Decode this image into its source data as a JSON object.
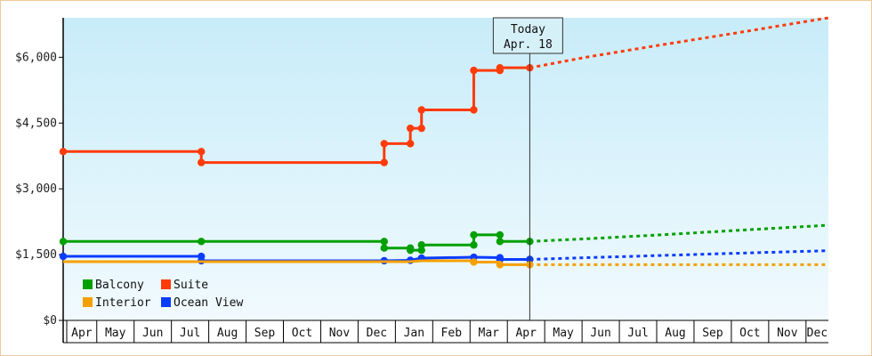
{
  "chart_data": {
    "type": "line",
    "title": "",
    "xlabel": "",
    "ylabel": "",
    "ylim": [
      0,
      6900
    ],
    "y_ticks": [
      "$0",
      "$1,500",
      "$3,000",
      "$4,500",
      "$6,000"
    ],
    "y_tick_values": [
      0,
      1500,
      3000,
      4500,
      6000
    ],
    "x_range": [
      0,
      20.5
    ],
    "months": [
      "Apr",
      "May",
      "Jun",
      "Jul",
      "Aug",
      "Sep",
      "Oct",
      "Nov",
      "Dec",
      "Jan",
      "Feb",
      "Mar",
      "Apr",
      "May",
      "Jun",
      "Jul",
      "Aug",
      "Sep",
      "Oct",
      "Nov",
      "Dec"
    ],
    "today": {
      "label": "Today",
      "date": "Apr. 18",
      "x": 12.5
    },
    "grid": false,
    "legend_placement": "bottom-left",
    "series": [
      {
        "name": "Suite",
        "color": "#ff3b0a",
        "points": [
          [
            0.0,
            3850
          ],
          [
            3.7,
            3850
          ],
          [
            3.7,
            3600
          ],
          [
            8.6,
            3600
          ],
          [
            8.6,
            4030
          ],
          [
            9.3,
            4030
          ],
          [
            9.3,
            4380
          ],
          [
            9.6,
            4380
          ],
          [
            9.6,
            4800
          ],
          [
            11.0,
            4800
          ],
          [
            11.0,
            5700
          ],
          [
            11.7,
            5700
          ],
          [
            11.7,
            5760
          ],
          [
            12.5,
            5760
          ]
        ],
        "markers": [
          [
            0.0,
            3850
          ],
          [
            3.7,
            3850
          ],
          [
            3.7,
            3600
          ],
          [
            8.6,
            3600
          ],
          [
            8.6,
            4030
          ],
          [
            9.3,
            4030
          ],
          [
            9.3,
            4380
          ],
          [
            9.6,
            4380
          ],
          [
            9.6,
            4800
          ],
          [
            11.0,
            4800
          ],
          [
            11.0,
            5700
          ],
          [
            11.7,
            5700
          ],
          [
            11.7,
            5760
          ],
          [
            12.5,
            5760
          ]
        ],
        "forecast": [
          [
            12.5,
            5760
          ],
          [
            14.0,
            6000
          ],
          [
            16.0,
            6280
          ],
          [
            18.0,
            6550
          ],
          [
            20.5,
            6900
          ]
        ]
      },
      {
        "name": "Balcony",
        "color": "#00a000",
        "points": [
          [
            0.0,
            1800
          ],
          [
            3.7,
            1800
          ],
          [
            8.6,
            1800
          ],
          [
            8.6,
            1650
          ],
          [
            9.3,
            1650
          ],
          [
            9.3,
            1600
          ],
          [
            9.6,
            1600
          ],
          [
            9.6,
            1720
          ],
          [
            11.0,
            1720
          ],
          [
            11.0,
            1950
          ],
          [
            11.7,
            1950
          ],
          [
            11.7,
            1800
          ],
          [
            12.5,
            1800
          ]
        ],
        "markers": [
          [
            0.0,
            1800
          ],
          [
            3.7,
            1800
          ],
          [
            8.6,
            1800
          ],
          [
            8.6,
            1650
          ],
          [
            9.3,
            1650
          ],
          [
            9.3,
            1600
          ],
          [
            9.6,
            1600
          ],
          [
            9.6,
            1720
          ],
          [
            11.0,
            1720
          ],
          [
            11.0,
            1950
          ],
          [
            11.7,
            1950
          ],
          [
            11.7,
            1800
          ],
          [
            12.5,
            1800
          ]
        ],
        "forecast": [
          [
            12.5,
            1800
          ],
          [
            14.0,
            1860
          ],
          [
            16.0,
            1950
          ],
          [
            18.0,
            2050
          ],
          [
            20.5,
            2170
          ]
        ]
      },
      {
        "name": "Ocean View",
        "color": "#0a3cff",
        "points": [
          [
            0.0,
            1460
          ],
          [
            3.7,
            1460
          ],
          [
            3.7,
            1360
          ],
          [
            8.6,
            1360
          ],
          [
            9.3,
            1370
          ],
          [
            9.6,
            1420
          ],
          [
            11.0,
            1440
          ],
          [
            11.7,
            1430
          ],
          [
            11.7,
            1390
          ],
          [
            12.5,
            1390
          ]
        ],
        "markers": [
          [
            0.0,
            1460
          ],
          [
            3.7,
            1460
          ],
          [
            3.7,
            1360
          ],
          [
            8.6,
            1360
          ],
          [
            9.3,
            1370
          ],
          [
            9.6,
            1420
          ],
          [
            11.0,
            1440
          ],
          [
            11.7,
            1430
          ],
          [
            11.7,
            1390
          ],
          [
            12.5,
            1390
          ]
        ],
        "forecast": [
          [
            12.5,
            1390
          ],
          [
            14.0,
            1430
          ],
          [
            16.0,
            1480
          ],
          [
            18.0,
            1530
          ],
          [
            20.5,
            1590
          ]
        ]
      },
      {
        "name": "Interior",
        "color": "#f5a000",
        "points": [
          [
            0.0,
            1340
          ],
          [
            3.7,
            1340
          ],
          [
            8.6,
            1340
          ],
          [
            9.3,
            1340
          ],
          [
            9.6,
            1360
          ],
          [
            11.0,
            1360
          ],
          [
            11.0,
            1330
          ],
          [
            11.7,
            1330
          ],
          [
            11.7,
            1270
          ],
          [
            12.5,
            1270
          ]
        ],
        "markers": [
          [
            11.0,
            1330
          ],
          [
            11.7,
            1270
          ],
          [
            12.5,
            1270
          ]
        ],
        "forecast": [
          [
            12.5,
            1270
          ],
          [
            20.5,
            1270
          ]
        ]
      }
    ],
    "legend": [
      {
        "name": "Balcony",
        "color": "#00a000"
      },
      {
        "name": "Suite",
        "color": "#ff3b0a"
      },
      {
        "name": "Interior",
        "color": "#f5a000"
      },
      {
        "name": "Ocean View",
        "color": "#0a3cff"
      }
    ]
  }
}
